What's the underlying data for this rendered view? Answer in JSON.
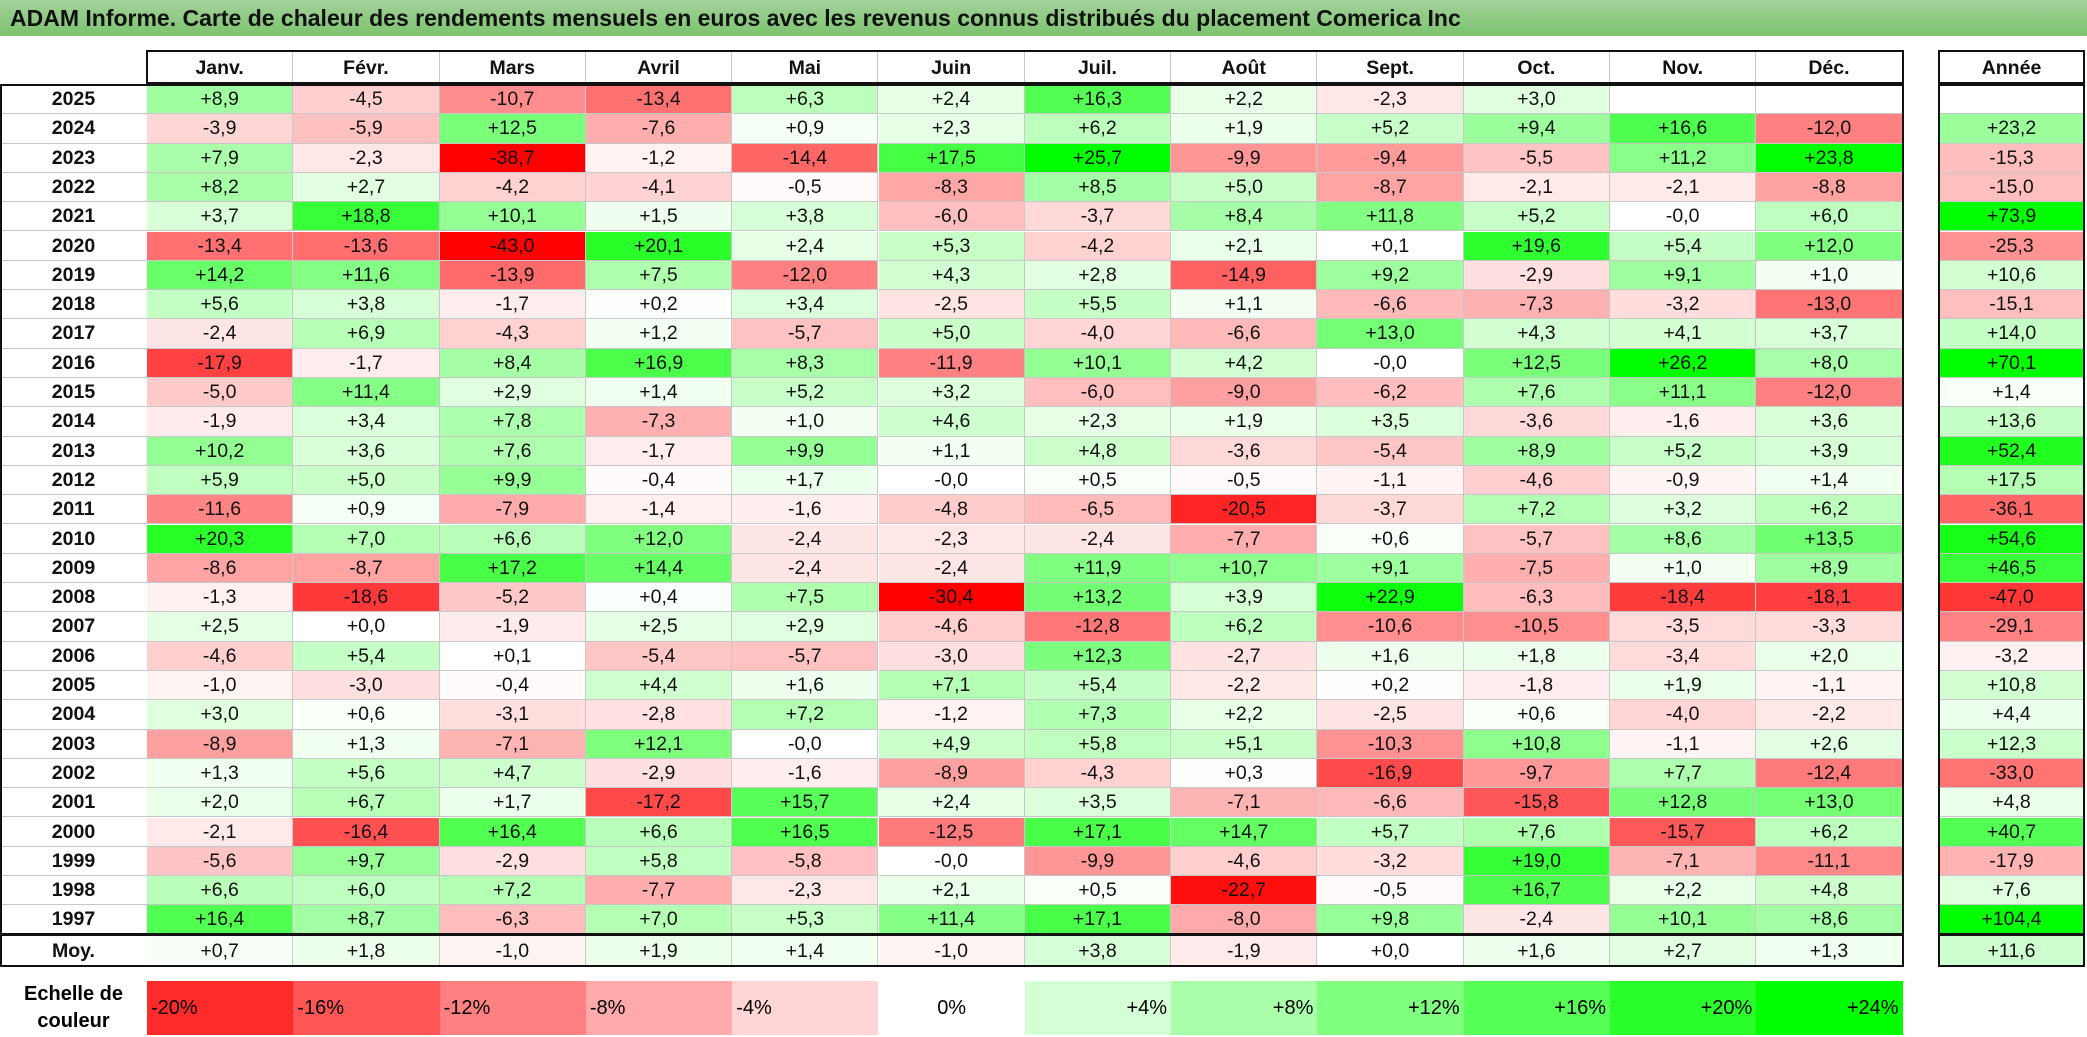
{
  "title": "ADAM Informe. Carte de chaleur des rendements mensuels en euros avec les revenus connus distribués du placement Comerica Inc",
  "chart_data": {
    "type": "heatmap",
    "months": [
      "Janv.",
      "Févr.",
      "Mars",
      "Avril",
      "Mai",
      "Juin",
      "Juil.",
      "Août",
      "Sept.",
      "Oct.",
      "Nov.",
      "Déc."
    ],
    "annual_header": "Année",
    "rows": [
      {
        "year": "2025",
        "values": [
          "+8,9",
          "-4,5",
          "-10,7",
          "-13,4",
          "+6,3",
          "+2,4",
          "+16,3",
          "+2,2",
          "-2,3",
          "+3,0",
          "",
          ""
        ],
        "annual": ""
      },
      {
        "year": "2024",
        "values": [
          "-3,9",
          "-5,9",
          "+12,5",
          "-7,6",
          "+0,9",
          "+2,3",
          "+6,2",
          "+1,9",
          "+5,2",
          "+9,4",
          "+16,6",
          "-12,0"
        ],
        "annual": "+23,2"
      },
      {
        "year": "2023",
        "values": [
          "+7,9",
          "-2,3",
          "-38,7",
          "-1,2",
          "-14,4",
          "+17,5",
          "+25,7",
          "-9,9",
          "-9,4",
          "-5,5",
          "+11,2",
          "+23,8"
        ],
        "annual": "-15,3"
      },
      {
        "year": "2022",
        "values": [
          "+8,2",
          "+2,7",
          "-4,2",
          "-4,1",
          "-0,5",
          "-8,3",
          "+8,5",
          "+5,0",
          "-8,7",
          "-2,1",
          "-2,1",
          "-8,8"
        ],
        "annual": "-15,0"
      },
      {
        "year": "2021",
        "values": [
          "+3,7",
          "+18,8",
          "+10,1",
          "+1,5",
          "+3,8",
          "-6,0",
          "-3,7",
          "+8,4",
          "+11,8",
          "+5,2",
          "-0,0",
          "+6,0"
        ],
        "annual": "+73,9"
      },
      {
        "year": "2020",
        "values": [
          "-13,4",
          "-13,6",
          "-43,0",
          "+20,1",
          "+2,4",
          "+5,3",
          "-4,2",
          "+2,1",
          "+0,1",
          "+19,6",
          "+5,4",
          "+12,0"
        ],
        "annual": "-25,3"
      },
      {
        "year": "2019",
        "values": [
          "+14,2",
          "+11,6",
          "-13,9",
          "+7,5",
          "-12,0",
          "+4,3",
          "+2,8",
          "-14,9",
          "+9,2",
          "-2,9",
          "+9,1",
          "+1,0"
        ],
        "annual": "+10,6"
      },
      {
        "year": "2018",
        "values": [
          "+5,6",
          "+3,8",
          "-1,7",
          "+0,2",
          "+3,4",
          "-2,5",
          "+5,5",
          "+1,1",
          "-6,6",
          "-7,3",
          "-3,2",
          "-13,0"
        ],
        "annual": "-15,1"
      },
      {
        "year": "2017",
        "values": [
          "-2,4",
          "+6,9",
          "-4,3",
          "+1,2",
          "-5,7",
          "+5,0",
          "-4,0",
          "-6,6",
          "+13,0",
          "+4,3",
          "+4,1",
          "+3,7"
        ],
        "annual": "+14,0"
      },
      {
        "year": "2016",
        "values": [
          "-17,9",
          "-1,7",
          "+8,4",
          "+16,9",
          "+8,3",
          "-11,9",
          "+10,1",
          "+4,2",
          "-0,0",
          "+12,5",
          "+26,2",
          "+8,0"
        ],
        "annual": "+70,1"
      },
      {
        "year": "2015",
        "values": [
          "-5,0",
          "+11,4",
          "+2,9",
          "+1,4",
          "+5,2",
          "+3,2",
          "-6,0",
          "-9,0",
          "-6,2",
          "+7,6",
          "+11,1",
          "-12,0"
        ],
        "annual": "+1,4"
      },
      {
        "year": "2014",
        "values": [
          "-1,9",
          "+3,4",
          "+7,8",
          "-7,3",
          "+1,0",
          "+4,6",
          "+2,3",
          "+1,9",
          "+3,5",
          "-3,6",
          "-1,6",
          "+3,6"
        ],
        "annual": "+13,6"
      },
      {
        "year": "2013",
        "values": [
          "+10,2",
          "+3,6",
          "+7,6",
          "-1,7",
          "+9,9",
          "+1,1",
          "+4,8",
          "-3,6",
          "-5,4",
          "+8,9",
          "+5,2",
          "+3,9"
        ],
        "annual": "+52,4"
      },
      {
        "year": "2012",
        "values": [
          "+5,9",
          "+5,0",
          "+9,9",
          "-0,4",
          "+1,7",
          "-0,0",
          "+0,5",
          "-0,5",
          "-1,1",
          "-4,6",
          "-0,9",
          "+1,4"
        ],
        "annual": "+17,5"
      },
      {
        "year": "2011",
        "values": [
          "-11,6",
          "+0,9",
          "-7,9",
          "-1,4",
          "-1,6",
          "-4,8",
          "-6,5",
          "-20,5",
          "-3,7",
          "+7,2",
          "+3,2",
          "+6,2"
        ],
        "annual": "-36,1"
      },
      {
        "year": "2010",
        "values": [
          "+20,3",
          "+7,0",
          "+6,6",
          "+12,0",
          "-2,4",
          "-2,3",
          "-2,4",
          "-7,7",
          "+0,6",
          "-5,7",
          "+8,6",
          "+13,5"
        ],
        "annual": "+54,6"
      },
      {
        "year": "2009",
        "values": [
          "-8,6",
          "-8,7",
          "+17,2",
          "+14,4",
          "-2,4",
          "-2,4",
          "+11,9",
          "+10,7",
          "+9,1",
          "-7,5",
          "+1,0",
          "+8,9"
        ],
        "annual": "+46,5"
      },
      {
        "year": "2008",
        "values": [
          "-1,3",
          "-18,6",
          "-5,2",
          "+0,4",
          "+7,5",
          "-30,4",
          "+13,2",
          "+3,9",
          "+22,9",
          "-6,3",
          "-18,4",
          "-18,1"
        ],
        "annual": "-47,0"
      },
      {
        "year": "2007",
        "values": [
          "+2,5",
          "+0,0",
          "-1,9",
          "+2,5",
          "+2,9",
          "-4,6",
          "-12,8",
          "+6,2",
          "-10,6",
          "-10,5",
          "-3,5",
          "-3,3"
        ],
        "annual": "-29,1"
      },
      {
        "year": "2006",
        "values": [
          "-4,6",
          "+5,4",
          "+0,1",
          "-5,4",
          "-5,7",
          "-3,0",
          "+12,3",
          "-2,7",
          "+1,6",
          "+1,8",
          "-3,4",
          "+2,0"
        ],
        "annual": "-3,2"
      },
      {
        "year": "2005",
        "values": [
          "-1,0",
          "-3,0",
          "-0,4",
          "+4,4",
          "+1,6",
          "+7,1",
          "+5,4",
          "-2,2",
          "+0,2",
          "-1,8",
          "+1,9",
          "-1,1"
        ],
        "annual": "+10,8"
      },
      {
        "year": "2004",
        "values": [
          "+3,0",
          "+0,6",
          "-3,1",
          "-2,8",
          "+7,2",
          "-1,2",
          "+7,3",
          "+2,2",
          "-2,5",
          "+0,6",
          "-4,0",
          "-2,2"
        ],
        "annual": "+4,4"
      },
      {
        "year": "2003",
        "values": [
          "-8,9",
          "+1,3",
          "-7,1",
          "+12,1",
          "-0,0",
          "+4,9",
          "+5,8",
          "+5,1",
          "-10,3",
          "+10,8",
          "-1,1",
          "+2,6"
        ],
        "annual": "+12,3"
      },
      {
        "year": "2002",
        "values": [
          "+1,3",
          "+5,6",
          "+4,7",
          "-2,9",
          "-1,6",
          "-8,9",
          "-4,3",
          "+0,3",
          "-16,9",
          "-9,7",
          "+7,7",
          "-12,4"
        ],
        "annual": "-33,0"
      },
      {
        "year": "2001",
        "values": [
          "+2,0",
          "+6,7",
          "+1,7",
          "-17,2",
          "+15,7",
          "+2,4",
          "+3,5",
          "-7,1",
          "-6,6",
          "-15,8",
          "+12,8",
          "+13,0"
        ],
        "annual": "+4,8"
      },
      {
        "year": "2000",
        "values": [
          "-2,1",
          "-16,4",
          "+16,4",
          "+6,6",
          "+16,5",
          "-12,5",
          "+17,1",
          "+14,7",
          "+5,7",
          "+7,6",
          "-15,7",
          "+6,2"
        ],
        "annual": "+40,7"
      },
      {
        "year": "1999",
        "values": [
          "-5,6",
          "+9,7",
          "-2,9",
          "+5,8",
          "-5,8",
          "-0,0",
          "-9,9",
          "-4,6",
          "-3,2",
          "+19,0",
          "-7,1",
          "-11,1"
        ],
        "annual": "-17,9"
      },
      {
        "year": "1998",
        "values": [
          "+6,6",
          "+6,0",
          "+7,2",
          "-7,7",
          "-2,3",
          "+2,1",
          "+0,5",
          "-22,7",
          "-0,5",
          "+16,7",
          "+2,2",
          "+4,8"
        ],
        "annual": "+7,6"
      },
      {
        "year": "1997",
        "values": [
          "+16,4",
          "+8,7",
          "-6,3",
          "+7,0",
          "+5,3",
          "+11,4",
          "+17,1",
          "-8,0",
          "+9,8",
          "-2,4",
          "+10,1",
          "+8,6"
        ],
        "annual": "+104,4"
      }
    ],
    "average": {
      "label": "Moy.",
      "values": [
        "+0,7",
        "+1,8",
        "-1,0",
        "+1,9",
        "+1,4",
        "-1,0",
        "+3,8",
        "-1,9",
        "+0,0",
        "+1,6",
        "+2,7",
        "+1,3"
      ],
      "annual": "+11,6"
    },
    "scale": {
      "title": "Echelle de couleur",
      "labels": [
        "-20%",
        "-16%",
        "-12%",
        "-8%",
        "-4%",
        "0%",
        "+4%",
        "+8%",
        "+12%",
        "+16%",
        "+20%",
        "+24%"
      ],
      "values": [
        -20,
        -16,
        -12,
        -8,
        -4,
        0,
        4,
        8,
        12,
        16,
        20,
        24
      ]
    },
    "colors": {
      "negative": "#ff0000",
      "positive": "#00ff00",
      "neutral": "#ffffff",
      "title_bar": "#7cc36f"
    }
  }
}
